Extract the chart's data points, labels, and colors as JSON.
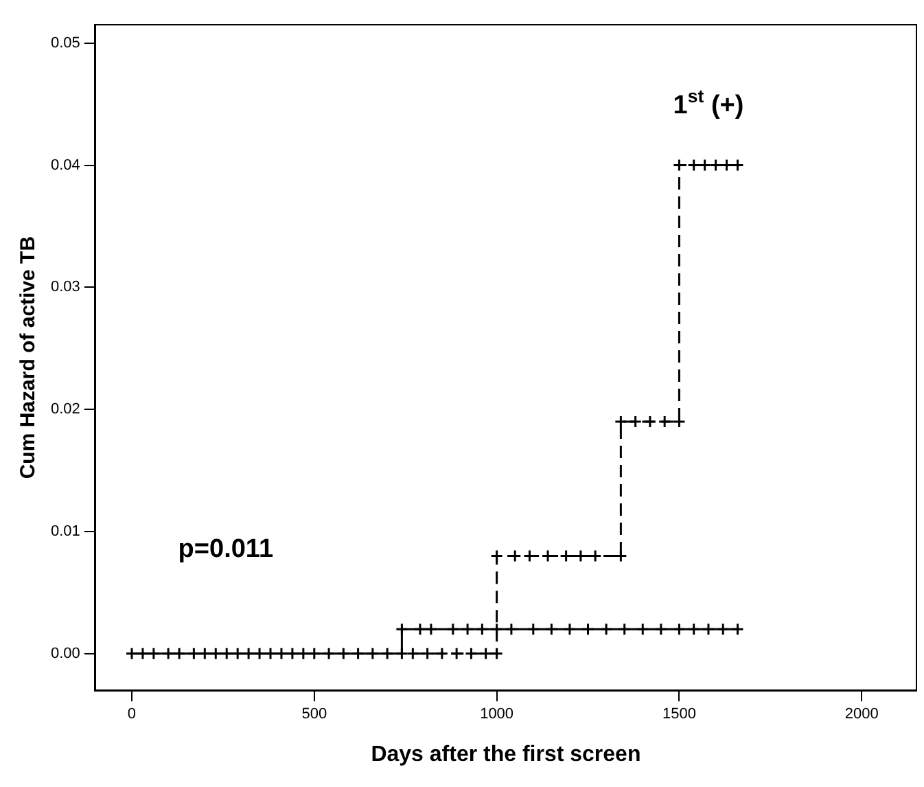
{
  "chart_data": {
    "type": "step",
    "xlabel": "Days after the first screen",
    "ylabel": "Cum Hazard of active TB",
    "annotations": [
      "p=0.011"
    ],
    "series": [
      {
        "color": "#000000",
        "line_style": "solid",
        "x": [
          0,
          30,
          60,
          100,
          130,
          170,
          200,
          230,
          260,
          290,
          320,
          350,
          380,
          410,
          440,
          470,
          500,
          540,
          580,
          620,
          660,
          700,
          740,
          740,
          790,
          820,
          880,
          920,
          960,
          1000,
          1040,
          1100,
          1150,
          1200,
          1250,
          1300,
          1350,
          1400,
          1450,
          1500,
          1540,
          1580,
          1620,
          1660
        ],
        "values": [
          0,
          0,
          0,
          0,
          0,
          0,
          0,
          0,
          0,
          0,
          0,
          0,
          0,
          0,
          0,
          0,
          0,
          0,
          0,
          0,
          0,
          0,
          0,
          0.002,
          0.002,
          0.002,
          0.002,
          0.002,
          0.002,
          0.002,
          0.002,
          0.002,
          0.002,
          0.002,
          0.002,
          0.002,
          0.002,
          0.002,
          0.002,
          0.002,
          0.002,
          0.002,
          0.002,
          0.002
        ]
      },
      {
        "name": "1$^{st}$ (+)",
        "color": "#000000",
        "line_style": "dashed",
        "x": [
          770,
          810,
          850,
          890,
          930,
          970,
          1000,
          1000,
          1050,
          1090,
          1140,
          1190,
          1230,
          1270,
          1340,
          1340,
          1380,
          1420,
          1460,
          1500,
          1500,
          1540,
          1570,
          1600,
          1630,
          1660
        ],
        "values": [
          0,
          0,
          0,
          0,
          0,
          0,
          0,
          0.008,
          0.008,
          0.008,
          0.008,
          0.008,
          0.008,
          0.008,
          0.008,
          0.019,
          0.019,
          0.019,
          0.019,
          0.019,
          0.04,
          0.04,
          0.04,
          0.04,
          0.04,
          0.04
        ]
      }
    ],
    "xlim": [
      -100,
      2150
    ],
    "xticks": [
      0,
      500,
      1000,
      1500,
      2000
    ],
    "ylim": [
      -0.003,
      0.0515
    ],
    "yticks": [
      {
        "value": 0,
        "label": "0.00"
      },
      {
        "value": 0.01,
        "label": "0.01"
      },
      {
        "value": 0.02,
        "label": "0.02"
      },
      {
        "value": 0.03,
        "label": "0.03"
      },
      {
        "value": 0.04,
        "label": "0.04"
      },
      {
        "value": 0.05,
        "label": "0.05"
      }
    ],
    "grid": false,
    "legend": false,
    "marker": "cross"
  }
}
